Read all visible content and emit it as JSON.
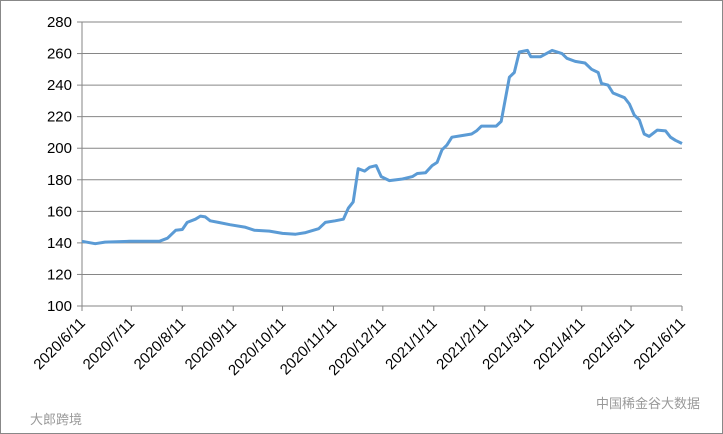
{
  "chart_data": {
    "type": "line",
    "x": [
      "2020/6/11",
      "2020/6/19",
      "2020/6/25",
      "2020/7/10",
      "2020/7/22",
      "2020/7/28",
      "2020/8/2",
      "2020/8/7",
      "2020/8/11",
      "2020/8/14",
      "2020/8/19",
      "2020/8/22",
      "2020/8/25",
      "2020/8/28",
      "2020/9/2",
      "2020/9/9",
      "2020/9/18",
      "2020/9/24",
      "2020/10/3",
      "2020/10/11",
      "2020/10/19",
      "2020/10/25",
      "2020/11/2",
      "2020/11/6",
      "2020/11/12",
      "2020/11/17",
      "2020/11/20",
      "2020/11/23",
      "2020/11/26",
      "2020/11/30",
      "2020/12/3",
      "2020/12/7",
      "2020/12/10",
      "2020/12/15",
      "2020/12/23",
      "2020/12/29",
      "2021/1/1",
      "2021/1/6",
      "2021/1/10",
      "2021/1/13",
      "2021/1/16",
      "2021/1/19",
      "2021/1/22",
      "2021/1/28",
      "2021/2/3",
      "2021/2/6",
      "2021/2/9",
      "2021/2/18",
      "2021/2/21",
      "2021/2/26",
      "2021/3/1",
      "2021/3/4",
      "2021/3/9",
      "2021/3/11",
      "2021/3/17",
      "2021/3/24",
      "2021/3/30",
      "2021/4/2",
      "2021/4/7",
      "2021/4/13",
      "2021/4/17",
      "2021/4/21",
      "2021/4/23",
      "2021/4/27",
      "2021/4/30",
      "2021/5/7",
      "2021/5/10",
      "2021/5/13",
      "2021/5/16",
      "2021/5/19",
      "2021/5/22",
      "2021/5/27",
      "2021/6/1",
      "2021/6/4",
      "2021/6/7",
      "2021/6/11"
    ],
    "series": [
      {
        "color": "#5b9bd5",
        "values": [
          141,
          139.5,
          140.5,
          141,
          141,
          141,
          143,
          148,
          148.5,
          153,
          155,
          157,
          156.5,
          154,
          153,
          151.5,
          150,
          148,
          147.5,
          146,
          145.5,
          146.5,
          149,
          153,
          154,
          155,
          162,
          166,
          187,
          185.5,
          188,
          189,
          182,
          179.5,
          180.5,
          182,
          184,
          184.5,
          189,
          191,
          199,
          202,
          207,
          208,
          209,
          211,
          214,
          214,
          217,
          245,
          248,
          261,
          262,
          258,
          258,
          262,
          260,
          257,
          255,
          254,
          250,
          248,
          241,
          240,
          235,
          232,
          228,
          221,
          218,
          209,
          207.5,
          211.5,
          211,
          207,
          205,
          203
        ]
      }
    ],
    "xlim": [
      "2020/6/11",
      "2021/6/11"
    ],
    "xticks": [
      "2020/6/11",
      "2020/7/11",
      "2020/8/11",
      "2020/9/11",
      "2020/10/11",
      "2020/11/11",
      "2020/12/11",
      "2021/1/11",
      "2021/2/11",
      "2021/3/11",
      "2021/4/11",
      "2021/5/11",
      "2021/6/11"
    ],
    "ylim": [
      100,
      280
    ],
    "yticks": [
      100,
      120,
      140,
      160,
      180,
      200,
      220,
      240,
      260,
      280
    ],
    "grid": true,
    "watermarks": [
      "大郎跨境",
      "中国稀金谷大数据"
    ]
  }
}
